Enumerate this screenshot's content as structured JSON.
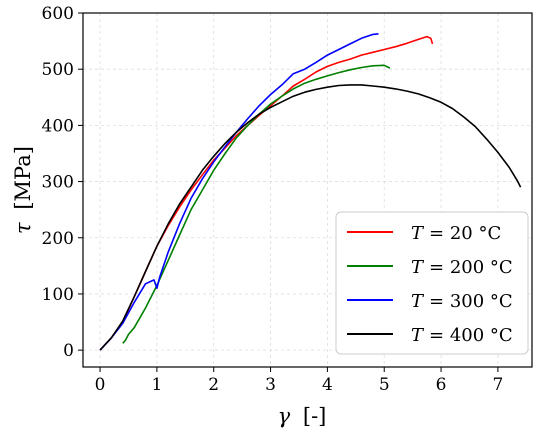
{
  "chart_data": {
    "type": "line",
    "title": "",
    "xlabel": {
      "symbol": "γ",
      "unit": "[-]"
    },
    "ylabel": {
      "symbol": "τ",
      "unit": "[MPa]"
    },
    "xlim": [
      -0.3,
      7.6
    ],
    "ylim": [
      -30,
      600
    ],
    "xticks": [
      0,
      1,
      2,
      3,
      4,
      5,
      6,
      7
    ],
    "yticks": [
      0,
      100,
      200,
      300,
      400,
      500,
      600
    ],
    "grid": true,
    "legend": {
      "placement": "bottom-right"
    },
    "series": [
      {
        "name": "T = 20 °C",
        "label_symbol": "T",
        "label_value": "= 20 °C",
        "color": "#ff0000",
        "x": [
          0,
          0.2,
          0.4,
          0.6,
          0.8,
          1.0,
          1.2,
          1.4,
          1.6,
          1.8,
          2.0,
          2.2,
          2.4,
          2.6,
          2.8,
          3.0,
          3.2,
          3.4,
          3.6,
          3.8,
          4.0,
          4.2,
          4.4,
          4.6,
          4.8,
          5.0,
          5.2,
          5.4,
          5.6,
          5.75,
          5.82,
          5.85
        ],
        "y": [
          0,
          22,
          50,
          95,
          140,
          185,
          222,
          255,
          285,
          312,
          338,
          360,
          382,
          400,
          418,
          435,
          452,
          470,
          482,
          495,
          505,
          512,
          518,
          525,
          530,
          535,
          540,
          546,
          553,
          558,
          555,
          545
        ]
      },
      {
        "name": "T = 200 °C",
        "label_symbol": "T",
        "label_value": "= 200 °C",
        "color": "#008000",
        "x": [
          0.4,
          0.45,
          0.5,
          0.6,
          0.8,
          1.0,
          1.2,
          1.4,
          1.6,
          1.8,
          2.0,
          2.2,
          2.4,
          2.6,
          2.8,
          3.0,
          3.2,
          3.4,
          3.6,
          3.8,
          4.0,
          4.2,
          4.4,
          4.6,
          4.8,
          5.0,
          5.1
        ],
        "y": [
          12,
          18,
          28,
          40,
          75,
          115,
          160,
          205,
          250,
          285,
          320,
          350,
          378,
          400,
          420,
          438,
          452,
          465,
          475,
          482,
          488,
          494,
          499,
          503,
          506,
          507,
          502
        ]
      },
      {
        "name": "T = 300 °C",
        "label_symbol": "T",
        "label_value": "= 300 °C",
        "color": "#0000ff",
        "x": [
          0,
          0.2,
          0.4,
          0.6,
          0.8,
          0.95,
          1.0,
          1.05,
          1.2,
          1.4,
          1.6,
          1.8,
          2.0,
          2.2,
          2.4,
          2.6,
          2.8,
          3.0,
          3.2,
          3.4,
          3.6,
          3.8,
          4.0,
          4.2,
          4.4,
          4.6,
          4.8,
          4.9
        ],
        "y": [
          0,
          22,
          48,
          85,
          118,
          125,
          110,
          130,
          175,
          225,
          270,
          305,
          335,
          362,
          388,
          412,
          435,
          455,
          472,
          492,
          500,
          512,
          525,
          535,
          545,
          555,
          562,
          563
        ]
      },
      {
        "name": "T = 400 °C",
        "label_symbol": "T",
        "label_value": "= 400 °C",
        "color": "#000000",
        "x": [
          0,
          0.2,
          0.4,
          0.6,
          0.8,
          1.0,
          1.2,
          1.4,
          1.6,
          1.8,
          2.0,
          2.2,
          2.4,
          2.6,
          2.8,
          3.0,
          3.2,
          3.4,
          3.6,
          3.8,
          4.0,
          4.2,
          4.4,
          4.6,
          4.8,
          5.0,
          5.2,
          5.4,
          5.6,
          5.8,
          6.0,
          6.2,
          6.4,
          6.6,
          6.8,
          7.0,
          7.2,
          7.35,
          7.4
        ],
        "y": [
          0,
          22,
          52,
          95,
          140,
          185,
          225,
          260,
          290,
          320,
          345,
          368,
          388,
          405,
          420,
          432,
          442,
          452,
          459,
          464,
          468,
          471,
          472,
          472,
          470,
          468,
          465,
          461,
          456,
          449,
          441,
          430,
          415,
          398,
          376,
          352,
          325,
          300,
          290
        ]
      }
    ]
  }
}
